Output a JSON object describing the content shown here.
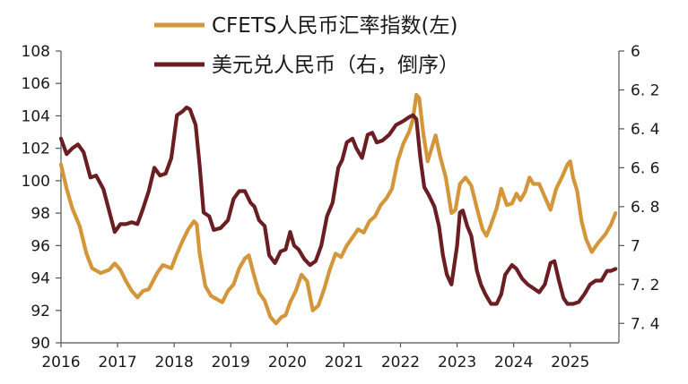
{
  "chart_data": {
    "type": "line",
    "title": "",
    "legend_position": "top-center",
    "grid": false,
    "x_ticks": [
      "2016",
      "2017",
      "2018",
      "2019",
      "2020",
      "2021",
      "2022",
      "2023",
      "2024",
      "2025"
    ],
    "left_axis": {
      "ylim": [
        90,
        108
      ],
      "ticks": [
        "90",
        "92",
        "94",
        "96",
        "98",
        "100",
        "102",
        "104",
        "106",
        "108"
      ]
    },
    "right_axis": {
      "ylim": [
        6,
        7.5
      ],
      "inverted": true,
      "ticks": [
        "6",
        "6.2",
        "6.4",
        "6.6",
        "6.8",
        "7",
        "7.2",
        "7.4"
      ]
    },
    "series": [
      {
        "name": "CFETS人民币汇率指数(左)",
        "axis": "left",
        "color": "#D4963A",
        "points": [
          [
            2016.0,
            101.0
          ],
          [
            2016.1,
            99.5
          ],
          [
            2016.2,
            98.3
          ],
          [
            2016.33,
            97.2
          ],
          [
            2016.45,
            95.5
          ],
          [
            2016.55,
            94.6
          ],
          [
            2016.7,
            94.3
          ],
          [
            2016.85,
            94.5
          ],
          [
            2016.95,
            94.9
          ],
          [
            2017.05,
            94.5
          ],
          [
            2017.15,
            93.8
          ],
          [
            2017.25,
            93.2
          ],
          [
            2017.35,
            92.8
          ],
          [
            2017.45,
            93.2
          ],
          [
            2017.55,
            93.3
          ],
          [
            2017.7,
            94.3
          ],
          [
            2017.8,
            94.8
          ],
          [
            2017.95,
            94.6
          ],
          [
            2018.05,
            95.5
          ],
          [
            2018.15,
            96.3
          ],
          [
            2018.25,
            97.0
          ],
          [
            2018.35,
            97.5
          ],
          [
            2018.4,
            97.3
          ],
          [
            2018.45,
            95.5
          ],
          [
            2018.55,
            93.5
          ],
          [
            2018.65,
            92.9
          ],
          [
            2018.75,
            92.7
          ],
          [
            2018.85,
            92.5
          ],
          [
            2018.95,
            93.2
          ],
          [
            2019.05,
            93.6
          ],
          [
            2019.15,
            94.6
          ],
          [
            2019.25,
            95.2
          ],
          [
            2019.32,
            95.4
          ],
          [
            2019.4,
            94.3
          ],
          [
            2019.5,
            93.1
          ],
          [
            2019.6,
            92.6
          ],
          [
            2019.7,
            91.6
          ],
          [
            2019.8,
            91.2
          ],
          [
            2019.9,
            91.6
          ],
          [
            2019.97,
            91.7
          ],
          [
            2020.05,
            92.5
          ],
          [
            2020.15,
            93.2
          ],
          [
            2020.25,
            94.2
          ],
          [
            2020.35,
            93.8
          ],
          [
            2020.45,
            92.0
          ],
          [
            2020.55,
            92.3
          ],
          [
            2020.65,
            93.3
          ],
          [
            2020.75,
            94.5
          ],
          [
            2020.85,
            95.5
          ],
          [
            2020.95,
            95.3
          ],
          [
            2021.05,
            96.0
          ],
          [
            2021.15,
            96.5
          ],
          [
            2021.25,
            97.0
          ],
          [
            2021.35,
            96.8
          ],
          [
            2021.45,
            97.5
          ],
          [
            2021.55,
            97.8
          ],
          [
            2021.65,
            98.5
          ],
          [
            2021.75,
            98.9
          ],
          [
            2021.85,
            99.5
          ],
          [
            2021.95,
            101.2
          ],
          [
            2022.05,
            102.3
          ],
          [
            2022.15,
            103.0
          ],
          [
            2022.22,
            103.8
          ],
          [
            2022.28,
            105.3
          ],
          [
            2022.33,
            105.1
          ],
          [
            2022.4,
            103.0
          ],
          [
            2022.48,
            101.2
          ],
          [
            2022.55,
            102.0
          ],
          [
            2022.62,
            102.8
          ],
          [
            2022.7,
            101.5
          ],
          [
            2022.8,
            100.2
          ],
          [
            2022.9,
            98.0
          ],
          [
            2022.97,
            98.2
          ],
          [
            2023.05,
            99.8
          ],
          [
            2023.15,
            100.2
          ],
          [
            2023.25,
            99.7
          ],
          [
            2023.35,
            98.3
          ],
          [
            2023.45,
            97.0
          ],
          [
            2023.52,
            96.6
          ],
          [
            2023.6,
            97.3
          ],
          [
            2023.7,
            98.3
          ],
          [
            2023.78,
            99.5
          ],
          [
            2023.88,
            98.5
          ],
          [
            2023.97,
            98.6
          ],
          [
            2024.05,
            99.2
          ],
          [
            2024.12,
            98.8
          ],
          [
            2024.2,
            99.3
          ],
          [
            2024.28,
            100.2
          ],
          [
            2024.35,
            99.8
          ],
          [
            2024.45,
            99.8
          ],
          [
            2024.55,
            99.0
          ],
          [
            2024.65,
            98.2
          ],
          [
            2024.75,
            99.5
          ],
          [
            2024.85,
            100.2
          ],
          [
            2024.95,
            101.0
          ],
          [
            2025.0,
            101.2
          ],
          [
            2025.05,
            100.2
          ],
          [
            2025.12,
            99.4
          ],
          [
            2025.2,
            97.5
          ],
          [
            2025.28,
            96.4
          ],
          [
            2025.38,
            95.6
          ],
          [
            2025.5,
            96.2
          ],
          [
            2025.62,
            96.7
          ],
          [
            2025.72,
            97.3
          ],
          [
            2025.8,
            98.0
          ]
        ]
      },
      {
        "name": "美元兑人民币（右，倒序）",
        "axis": "right",
        "color": "#6B1E22",
        "points": [
          [
            2016.0,
            6.45
          ],
          [
            2016.1,
            6.53
          ],
          [
            2016.2,
            6.5
          ],
          [
            2016.3,
            6.48
          ],
          [
            2016.4,
            6.52
          ],
          [
            2016.52,
            6.65
          ],
          [
            2016.62,
            6.64
          ],
          [
            2016.75,
            6.71
          ],
          [
            2016.85,
            6.82
          ],
          [
            2016.95,
            6.93
          ],
          [
            2017.05,
            6.89
          ],
          [
            2017.15,
            6.89
          ],
          [
            2017.25,
            6.88
          ],
          [
            2017.35,
            6.89
          ],
          [
            2017.45,
            6.81
          ],
          [
            2017.55,
            6.72
          ],
          [
            2017.65,
            6.6
          ],
          [
            2017.75,
            6.64
          ],
          [
            2017.85,
            6.63
          ],
          [
            2017.95,
            6.55
          ],
          [
            2018.05,
            6.33
          ],
          [
            2018.15,
            6.31
          ],
          [
            2018.22,
            6.29
          ],
          [
            2018.28,
            6.3
          ],
          [
            2018.38,
            6.38
          ],
          [
            2018.45,
            6.59
          ],
          [
            2018.52,
            6.83
          ],
          [
            2018.62,
            6.85
          ],
          [
            2018.7,
            6.92
          ],
          [
            2018.82,
            6.91
          ],
          [
            2018.95,
            6.87
          ],
          [
            2019.05,
            6.76
          ],
          [
            2019.15,
            6.72
          ],
          [
            2019.25,
            6.72
          ],
          [
            2019.35,
            6.78
          ],
          [
            2019.42,
            6.8
          ],
          [
            2019.5,
            6.87
          ],
          [
            2019.6,
            6.9
          ],
          [
            2019.68,
            7.05
          ],
          [
            2019.78,
            7.09
          ],
          [
            2019.88,
            7.03
          ],
          [
            2019.97,
            7.02
          ],
          [
            2020.05,
            6.93
          ],
          [
            2020.12,
            7.0
          ],
          [
            2020.2,
            7.02
          ],
          [
            2020.3,
            7.07
          ],
          [
            2020.4,
            7.1
          ],
          [
            2020.5,
            7.08
          ],
          [
            2020.6,
            7.0
          ],
          [
            2020.7,
            6.85
          ],
          [
            2020.8,
            6.78
          ],
          [
            2020.9,
            6.6
          ],
          [
            2020.97,
            6.56
          ],
          [
            2021.05,
            6.47
          ],
          [
            2021.15,
            6.45
          ],
          [
            2021.22,
            6.5
          ],
          [
            2021.32,
            6.55
          ],
          [
            2021.42,
            6.43
          ],
          [
            2021.5,
            6.42
          ],
          [
            2021.58,
            6.47
          ],
          [
            2021.68,
            6.46
          ],
          [
            2021.8,
            6.43
          ],
          [
            2021.92,
            6.38
          ],
          [
            2022.05,
            6.36
          ],
          [
            2022.15,
            6.34
          ],
          [
            2022.22,
            6.33
          ],
          [
            2022.28,
            6.35
          ],
          [
            2022.35,
            6.55
          ],
          [
            2022.42,
            6.7
          ],
          [
            2022.5,
            6.74
          ],
          [
            2022.6,
            6.8
          ],
          [
            2022.68,
            6.9
          ],
          [
            2022.75,
            7.05
          ],
          [
            2022.82,
            7.15
          ],
          [
            2022.9,
            7.2
          ],
          [
            2023.0,
            7.0
          ],
          [
            2023.05,
            6.83
          ],
          [
            2023.1,
            6.82
          ],
          [
            2023.18,
            6.9
          ],
          [
            2023.25,
            6.95
          ],
          [
            2023.35,
            7.13
          ],
          [
            2023.42,
            7.2
          ],
          [
            2023.5,
            7.25
          ],
          [
            2023.6,
            7.3
          ],
          [
            2023.7,
            7.3
          ],
          [
            2023.78,
            7.25
          ],
          [
            2023.85,
            7.15
          ],
          [
            2023.97,
            7.1
          ],
          [
            2024.05,
            7.12
          ],
          [
            2024.15,
            7.17
          ],
          [
            2024.25,
            7.2
          ],
          [
            2024.35,
            7.22
          ],
          [
            2024.45,
            7.24
          ],
          [
            2024.55,
            7.2
          ],
          [
            2024.65,
            7.09
          ],
          [
            2024.72,
            7.08
          ],
          [
            2024.8,
            7.18
          ],
          [
            2024.88,
            7.27
          ],
          [
            2024.95,
            7.3
          ],
          [
            2025.05,
            7.3
          ],
          [
            2025.15,
            7.29
          ],
          [
            2025.25,
            7.25
          ],
          [
            2025.35,
            7.2
          ],
          [
            2025.45,
            7.18
          ],
          [
            2025.55,
            7.18
          ],
          [
            2025.65,
            7.13
          ],
          [
            2025.72,
            7.13
          ],
          [
            2025.8,
            7.12
          ]
        ]
      }
    ]
  }
}
